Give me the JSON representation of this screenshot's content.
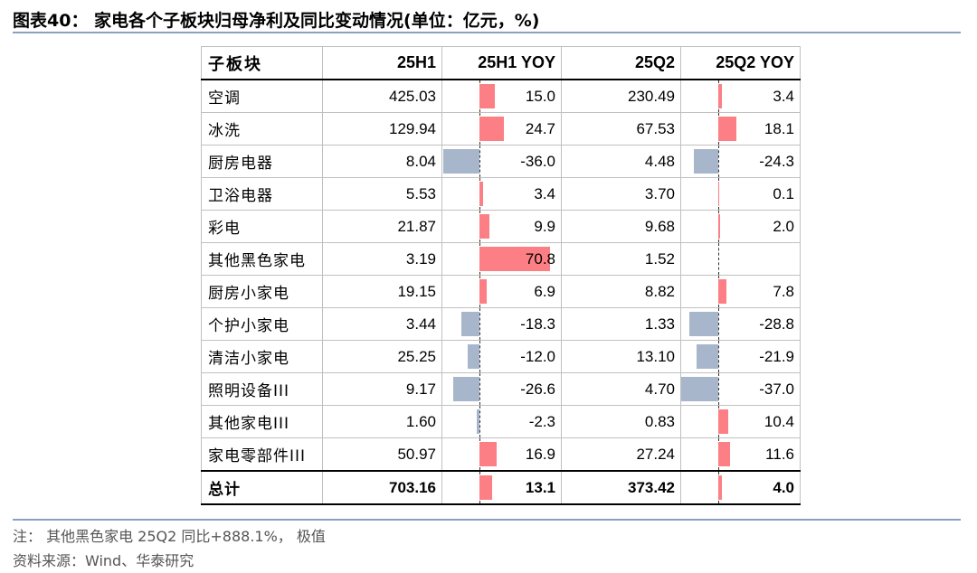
{
  "title": "图表40：  家电各个子板块归母净利及同比变动情况(单位：亿元，%)",
  "table": {
    "headers": [
      "子板块",
      "25H1",
      "25H1 YOY",
      "25Q2",
      "25Q2 YOY"
    ],
    "rows": [
      {
        "name": "空调",
        "h1": "425.03",
        "h1_yoy": 15.0,
        "h1_yoy_text": "15.0",
        "q2": "230.49",
        "q2_yoy": 3.4,
        "q2_yoy_text": "3.4"
      },
      {
        "name": "冰洗",
        "h1": "129.94",
        "h1_yoy": 24.7,
        "h1_yoy_text": "24.7",
        "q2": "67.53",
        "q2_yoy": 18.1,
        "q2_yoy_text": "18.1"
      },
      {
        "name": "厨房电器",
        "h1": "8.04",
        "h1_yoy": -36.0,
        "h1_yoy_text": "-36.0",
        "q2": "4.48",
        "q2_yoy": -24.3,
        "q2_yoy_text": "-24.3"
      },
      {
        "name": "卫浴电器",
        "h1": "5.53",
        "h1_yoy": 3.4,
        "h1_yoy_text": "3.4",
        "q2": "3.70",
        "q2_yoy": 0.1,
        "q2_yoy_text": "0.1"
      },
      {
        "name": "彩电",
        "h1": "21.87",
        "h1_yoy": 9.9,
        "h1_yoy_text": "9.9",
        "q2": "9.68",
        "q2_yoy": 2.0,
        "q2_yoy_text": "2.0"
      },
      {
        "name": "其他黑色家电",
        "h1": "3.19",
        "h1_yoy": 70.8,
        "h1_yoy_text": "70.8",
        "q2": "1.52",
        "q2_yoy": null,
        "q2_yoy_text": ""
      },
      {
        "name": "厨房小家电",
        "h1": "19.15",
        "h1_yoy": 6.9,
        "h1_yoy_text": "6.9",
        "q2": "8.82",
        "q2_yoy": 7.8,
        "q2_yoy_text": "7.8"
      },
      {
        "name": "个护小家电",
        "h1": "3.44",
        "h1_yoy": -18.3,
        "h1_yoy_text": "-18.3",
        "q2": "1.33",
        "q2_yoy": -28.8,
        "q2_yoy_text": "-28.8"
      },
      {
        "name": "清洁小家电",
        "h1": "25.25",
        "h1_yoy": -12.0,
        "h1_yoy_text": "-12.0",
        "q2": "13.10",
        "q2_yoy": -21.9,
        "q2_yoy_text": "-21.9"
      },
      {
        "name": "照明设备III",
        "h1": "9.17",
        "h1_yoy": -26.6,
        "h1_yoy_text": "-26.6",
        "q2": "4.70",
        "q2_yoy": -37.0,
        "q2_yoy_text": "-37.0"
      },
      {
        "name": "其他家电III",
        "h1": "1.60",
        "h1_yoy": -2.3,
        "h1_yoy_text": "-2.3",
        "q2": "0.83",
        "q2_yoy": 10.4,
        "q2_yoy_text": "10.4"
      },
      {
        "name": "家电零部件III",
        "h1": "50.97",
        "h1_yoy": 16.9,
        "h1_yoy_text": "16.9",
        "q2": "27.24",
        "q2_yoy": 11.6,
        "q2_yoy_text": "11.6"
      },
      {
        "name": "总计",
        "h1": "703.16",
        "h1_yoy": 13.1,
        "h1_yoy_text": "13.1",
        "q2": "373.42",
        "q2_yoy": 4.0,
        "q2_yoy_text": "4.0",
        "total": true
      }
    ]
  },
  "note": "注：  其他黑色家电 25Q2 同比+888.1%，  极值",
  "source": "资料来源：Wind、华泰研究",
  "colors": {
    "positive_bar": "#fb7f84",
    "negative_bar": "#a8b6cb",
    "rule": "#8aa0c0"
  }
}
